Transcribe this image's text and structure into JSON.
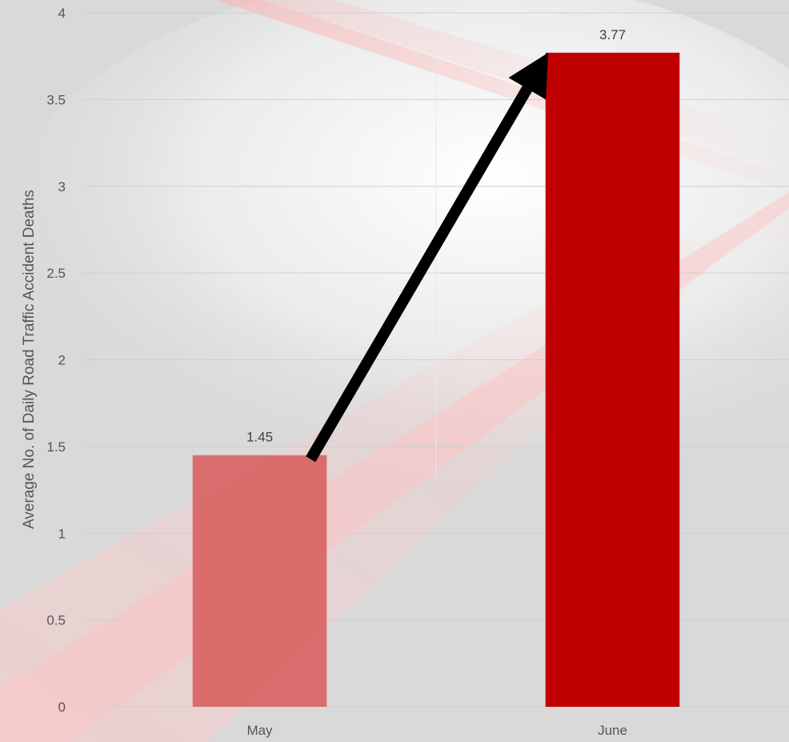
{
  "chart_data": {
    "type": "bar",
    "title": "",
    "xlabel": "",
    "ylabel": "Average  No. of Daily Road Traffic Accident Deaths",
    "categories": [
      "May",
      "June"
    ],
    "values": [
      1.45,
      3.77
    ],
    "data_labels": [
      "1.45",
      "3.77"
    ],
    "ylim": [
      0,
      4
    ],
    "yticks": [
      "0",
      "0.5",
      "1",
      "1.5",
      "2",
      "2.5",
      "3",
      "3.5",
      "4"
    ],
    "grid": true,
    "legend": "none",
    "annotation": "arrow from May bar to June bar",
    "colors": {
      "May": "#d96060",
      "June": "#c00000",
      "arrow": "#000000",
      "background": "#d9d9d9",
      "accent_streaks": "#ffc8c8"
    }
  }
}
